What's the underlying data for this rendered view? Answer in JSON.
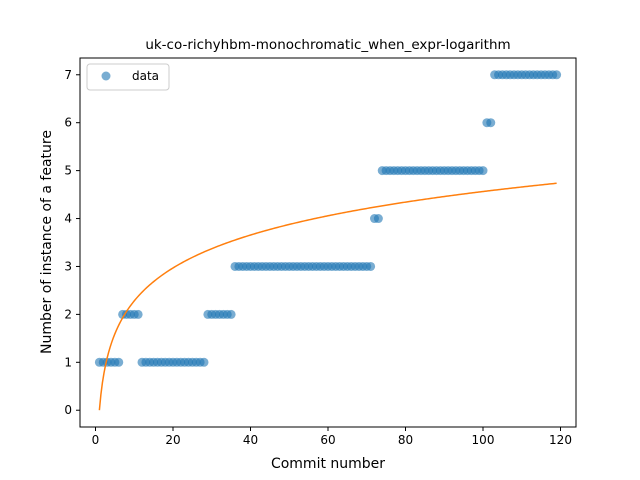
{
  "chart_data": {
    "type": "scatter",
    "title": "uk-co-richyhbm-monochromatic_when_expr-logarithm",
    "xlabel": "Commit number",
    "ylabel": "Number of instance of a feature",
    "xlim": [
      -4,
      124
    ],
    "ylim": [
      -0.35,
      7.35
    ],
    "xticks": [
      0,
      20,
      40,
      60,
      80,
      100,
      120
    ],
    "yticks": [
      0,
      1,
      2,
      3,
      4,
      5,
      6,
      7
    ],
    "legend": {
      "position": "top-left"
    },
    "grid": false,
    "series": [
      {
        "name": "data",
        "kind": "scatter",
        "color": "#1f77b4",
        "opacity": 0.6,
        "points": [
          [
            1,
            1
          ],
          [
            2,
            1
          ],
          [
            3,
            1
          ],
          [
            4,
            1
          ],
          [
            5,
            1
          ],
          [
            6,
            1
          ],
          [
            7,
            2
          ],
          [
            8,
            2
          ],
          [
            9,
            2
          ],
          [
            10,
            2
          ],
          [
            11,
            2
          ],
          [
            12,
            1
          ],
          [
            13,
            1
          ],
          [
            14,
            1
          ],
          [
            15,
            1
          ],
          [
            16,
            1
          ],
          [
            17,
            1
          ],
          [
            18,
            1
          ],
          [
            19,
            1
          ],
          [
            20,
            1
          ],
          [
            21,
            1
          ],
          [
            22,
            1
          ],
          [
            23,
            1
          ],
          [
            24,
            1
          ],
          [
            25,
            1
          ],
          [
            26,
            1
          ],
          [
            27,
            1
          ],
          [
            28,
            1
          ],
          [
            29,
            2
          ],
          [
            30,
            2
          ],
          [
            31,
            2
          ],
          [
            32,
            2
          ],
          [
            33,
            2
          ],
          [
            34,
            2
          ],
          [
            35,
            2
          ],
          [
            36,
            3
          ],
          [
            37,
            3
          ],
          [
            38,
            3
          ],
          [
            39,
            3
          ],
          [
            40,
            3
          ],
          [
            41,
            3
          ],
          [
            42,
            3
          ],
          [
            43,
            3
          ],
          [
            44,
            3
          ],
          [
            45,
            3
          ],
          [
            46,
            3
          ],
          [
            47,
            3
          ],
          [
            48,
            3
          ],
          [
            49,
            3
          ],
          [
            50,
            3
          ],
          [
            51,
            3
          ],
          [
            52,
            3
          ],
          [
            53,
            3
          ],
          [
            54,
            3
          ],
          [
            55,
            3
          ],
          [
            56,
            3
          ],
          [
            57,
            3
          ],
          [
            58,
            3
          ],
          [
            59,
            3
          ],
          [
            60,
            3
          ],
          [
            61,
            3
          ],
          [
            62,
            3
          ],
          [
            63,
            3
          ],
          [
            64,
            3
          ],
          [
            65,
            3
          ],
          [
            66,
            3
          ],
          [
            67,
            3
          ],
          [
            68,
            3
          ],
          [
            69,
            3
          ],
          [
            70,
            3
          ],
          [
            71,
            3
          ],
          [
            72,
            4
          ],
          [
            73,
            4
          ],
          [
            74,
            5
          ],
          [
            75,
            5
          ],
          [
            76,
            5
          ],
          [
            77,
            5
          ],
          [
            78,
            5
          ],
          [
            79,
            5
          ],
          [
            80,
            5
          ],
          [
            81,
            5
          ],
          [
            82,
            5
          ],
          [
            83,
            5
          ],
          [
            84,
            5
          ],
          [
            85,
            5
          ],
          [
            86,
            5
          ],
          [
            87,
            5
          ],
          [
            88,
            5
          ],
          [
            89,
            5
          ],
          [
            90,
            5
          ],
          [
            91,
            5
          ],
          [
            92,
            5
          ],
          [
            93,
            5
          ],
          [
            94,
            5
          ],
          [
            95,
            5
          ],
          [
            96,
            5
          ],
          [
            97,
            5
          ],
          [
            98,
            5
          ],
          [
            99,
            5
          ],
          [
            100,
            5
          ],
          [
            101,
            6
          ],
          [
            102,
            6
          ],
          [
            103,
            7
          ],
          [
            104,
            7
          ],
          [
            105,
            7
          ],
          [
            106,
            7
          ],
          [
            107,
            7
          ],
          [
            108,
            7
          ],
          [
            109,
            7
          ],
          [
            110,
            7
          ],
          [
            111,
            7
          ],
          [
            112,
            7
          ],
          [
            113,
            7
          ],
          [
            114,
            7
          ],
          [
            115,
            7
          ],
          [
            116,
            7
          ],
          [
            117,
            7
          ],
          [
            118,
            7
          ],
          [
            119,
            7
          ]
        ]
      },
      {
        "kind": "line",
        "color": "#ff7f0e",
        "function": "logarithm",
        "coefficients": {
          "a": 0.991,
          "b": 0.0
        },
        "x_range": [
          1,
          119
        ]
      }
    ]
  }
}
